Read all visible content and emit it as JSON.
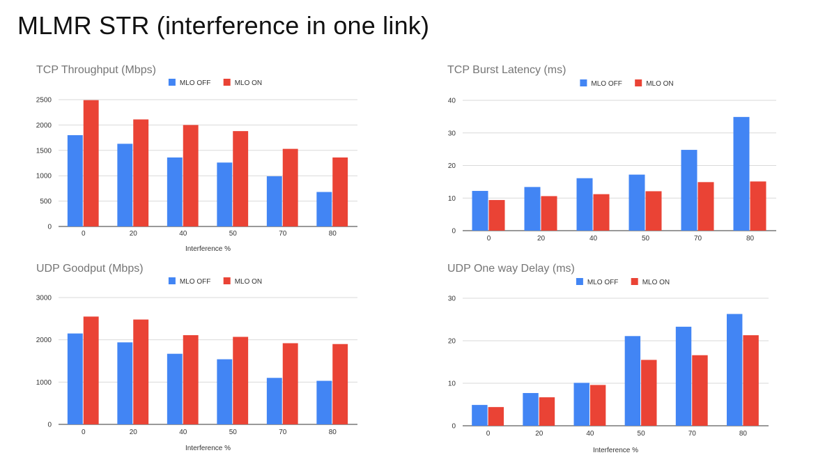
{
  "page": {
    "title": "MLMR STR (interference in one link)"
  },
  "colors": {
    "mlo_off": "#4285F4",
    "mlo_on": "#EA4335",
    "grid": "#d9d9d9",
    "axis": "#333333",
    "title": "#757575"
  },
  "chart_data": [
    {
      "type": "bar",
      "title": "TCP Throughput (Mbps)",
      "xlabel": "Interference %",
      "ylabel": "",
      "categories": [
        "0",
        "20",
        "40",
        "50",
        "70",
        "80"
      ],
      "ylim": [
        0,
        2500
      ],
      "yticks": [
        "0",
        "500",
        "1000",
        "1500",
        "2000",
        "2500"
      ],
      "legend_position": "top",
      "grid": true,
      "series": [
        {
          "name": "MLO OFF",
          "color": "#4285F4",
          "values": [
            1800,
            1630,
            1360,
            1260,
            990,
            680
          ]
        },
        {
          "name": "MLO ON",
          "color": "#EA4335",
          "values": [
            2490,
            2110,
            2000,
            1880,
            1530,
            1360
          ]
        }
      ]
    },
    {
      "type": "bar",
      "title": "TCP Burst Latency (ms)",
      "xlabel": "",
      "ylabel": "",
      "categories": [
        "0",
        "20",
        "40",
        "50",
        "70",
        "80"
      ],
      "ylim": [
        0,
        40
      ],
      "yticks": [
        "0",
        "10",
        "20",
        "30",
        "40"
      ],
      "legend_position": "top",
      "grid": true,
      "series": [
        {
          "name": "MLO OFF",
          "color": "#4285F4",
          "values": [
            12.2,
            13.4,
            16.1,
            17.2,
            24.8,
            34.9
          ]
        },
        {
          "name": "MLO ON",
          "color": "#EA4335",
          "values": [
            9.4,
            10.6,
            11.2,
            12.1,
            14.9,
            15.1
          ]
        }
      ]
    },
    {
      "type": "bar",
      "title": "UDP Goodput (Mbps)",
      "xlabel": "Interference %",
      "ylabel": "",
      "categories": [
        "0",
        "20",
        "40",
        "50",
        "70",
        "80"
      ],
      "ylim": [
        0,
        3000
      ],
      "yticks": [
        "0",
        "1000",
        "2000",
        "3000"
      ],
      "legend_position": "top",
      "grid": true,
      "series": [
        {
          "name": "MLO OFF",
          "color": "#4285F4",
          "values": [
            2150,
            1940,
            1670,
            1540,
            1100,
            1030
          ]
        },
        {
          "name": "MLO ON",
          "color": "#EA4335",
          "values": [
            2550,
            2480,
            2110,
            2070,
            1920,
            1900
          ]
        }
      ]
    },
    {
      "type": "bar",
      "title": "UDP One way Delay (ms)",
      "xlabel": "Interference %",
      "ylabel": "",
      "categories": [
        "0",
        "20",
        "40",
        "50",
        "70",
        "80"
      ],
      "ylim": [
        0,
        30
      ],
      "yticks": [
        "0",
        "10",
        "20",
        "30"
      ],
      "legend_position": "top",
      "grid": true,
      "series": [
        {
          "name": "MLO OFF",
          "color": "#4285F4",
          "values": [
            4.9,
            7.7,
            10.1,
            21.1,
            23.3,
            26.3
          ]
        },
        {
          "name": "MLO ON",
          "color": "#EA4335",
          "values": [
            4.4,
            6.7,
            9.6,
            15.5,
            16.6,
            21.3
          ]
        }
      ]
    }
  ]
}
